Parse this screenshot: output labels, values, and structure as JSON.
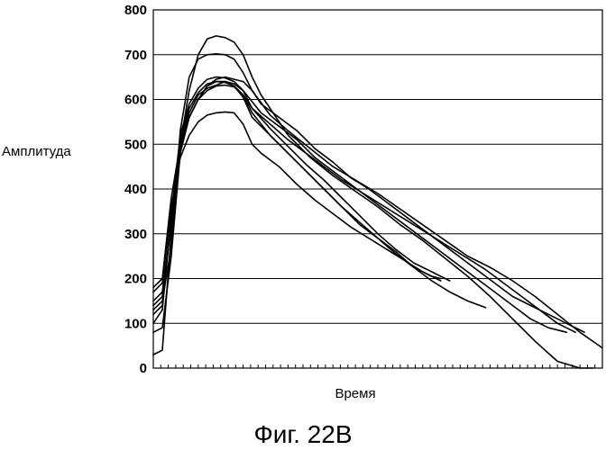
{
  "chart_data": {
    "type": "line",
    "xlabel": "Время",
    "ylabel": "Амплитуда",
    "caption": "Фиг. 22B",
    "ylim": [
      0,
      800
    ],
    "yticks": [
      0,
      100,
      200,
      300,
      400,
      500,
      600,
      700,
      800
    ],
    "xlim": [
      0,
      100
    ],
    "grid": "horizontal",
    "series": [
      {
        "x": [
          0,
          2,
          4,
          6,
          8,
          10,
          12,
          14,
          16,
          18,
          20,
          22,
          24,
          26,
          30,
          35,
          40,
          45,
          50,
          55,
          60,
          65,
          70,
          75,
          80,
          85,
          90,
          95,
          98
        ],
        "y": [
          30,
          40,
          300,
          500,
          620,
          700,
          735,
          742,
          738,
          728,
          700,
          650,
          610,
          580,
          520,
          470,
          430,
          395,
          360,
          320,
          285,
          245,
          205,
          160,
          110,
          60,
          15,
          0,
          0
        ]
      },
      {
        "x": [
          0,
          2,
          4,
          6,
          8,
          10,
          12,
          14,
          16,
          18,
          20,
          22,
          26,
          30,
          35,
          40,
          45,
          50,
          55,
          60,
          65,
          70,
          75,
          80,
          85,
          90,
          95,
          100
        ],
        "y": [
          130,
          150,
          270,
          530,
          650,
          690,
          700,
          702,
          700,
          690,
          660,
          620,
          565,
          530,
          490,
          450,
          420,
          390,
          355,
          320,
          285,
          250,
          225,
          195,
          160,
          120,
          80,
          45
        ]
      },
      {
        "x": [
          0,
          2,
          4,
          6,
          8,
          10,
          12,
          14,
          16,
          18,
          20,
          22,
          24,
          28,
          32,
          36,
          40,
          44,
          48,
          52,
          56,
          60,
          64,
          68,
          72,
          76,
          80,
          84,
          88,
          92,
          96
        ],
        "y": [
          80,
          90,
          250,
          480,
          560,
          600,
          630,
          645,
          650,
          645,
          640,
          620,
          590,
          560,
          530,
          490,
          460,
          425,
          400,
          370,
          340,
          310,
          280,
          250,
          220,
          190,
          160,
          140,
          120,
          100,
          80
        ]
      },
      {
        "x": [
          0,
          2,
          4,
          6,
          8,
          10,
          12,
          14,
          16,
          18,
          20,
          22,
          24,
          28,
          32,
          36,
          40,
          44,
          48,
          52,
          56,
          60,
          64,
          68,
          72,
          76,
          80,
          84,
          88,
          92
        ],
        "y": [
          150,
          170,
          320,
          500,
          570,
          610,
          625,
          632,
          640,
          635,
          620,
          595,
          570,
          540,
          510,
          470,
          440,
          410,
          380,
          350,
          320,
          290,
          260,
          230,
          200,
          170,
          140,
          110,
          90,
          80
        ]
      },
      {
        "x": [
          0,
          2,
          4,
          6,
          8,
          10,
          12,
          14,
          16,
          18,
          20,
          22,
          26,
          30,
          34,
          38,
          42,
          46,
          50,
          54,
          58,
          62,
          66,
          70,
          74,
          78,
          82,
          86,
          90,
          94
        ],
        "y": [
          140,
          160,
          330,
          490,
          560,
          600,
          620,
          630,
          632,
          628,
          610,
          580,
          545,
          510,
          480,
          450,
          420,
          395,
          370,
          345,
          320,
          295,
          270,
          245,
          220,
          190,
          160,
          130,
          100,
          80
        ]
      },
      {
        "x": [
          0,
          2,
          4,
          6,
          8,
          10,
          12,
          14,
          16,
          18,
          20,
          22,
          26,
          30,
          34,
          38,
          42,
          46,
          50,
          54,
          58,
          62,
          66,
          70,
          74
        ],
        "y": [
          180,
          200,
          380,
          500,
          560,
          600,
          630,
          640,
          640,
          630,
          610,
          570,
          520,
          480,
          440,
          400,
          360,
          320,
          290,
          260,
          225,
          195,
          170,
          150,
          135
        ]
      },
      {
        "x": [
          0,
          2,
          4,
          6,
          8,
          10,
          12,
          14,
          16,
          18,
          20,
          22,
          26,
          30,
          34,
          38,
          42,
          46,
          50,
          54,
          58,
          62,
          66
        ],
        "y": [
          100,
          130,
          340,
          520,
          590,
          625,
          645,
          650,
          648,
          640,
          620,
          580,
          535,
          495,
          455,
          420,
          380,
          340,
          300,
          265,
          235,
          215,
          195
        ]
      },
      {
        "x": [
          0,
          2,
          4,
          6,
          8,
          10,
          12,
          14,
          16,
          18,
          20,
          22,
          26,
          30,
          34,
          38,
          42,
          46,
          50,
          54,
          58,
          62,
          64
        ],
        "y": [
          120,
          140,
          330,
          510,
          580,
          615,
          635,
          640,
          638,
          630,
          605,
          560,
          520,
          480,
          440,
          400,
          360,
          325,
          290,
          255,
          225,
          205,
          200
        ]
      },
      {
        "x": [
          0,
          2,
          4,
          6,
          8,
          10,
          12,
          14,
          16,
          18,
          20,
          22,
          24,
          28,
          32,
          36,
          40,
          44,
          48,
          52,
          56,
          60,
          64
        ],
        "y": [
          170,
          190,
          360,
          470,
          520,
          550,
          565,
          570,
          572,
          570,
          545,
          500,
          480,
          450,
          410,
          375,
          345,
          315,
          290,
          265,
          240,
          215,
          195
        ]
      }
    ]
  }
}
